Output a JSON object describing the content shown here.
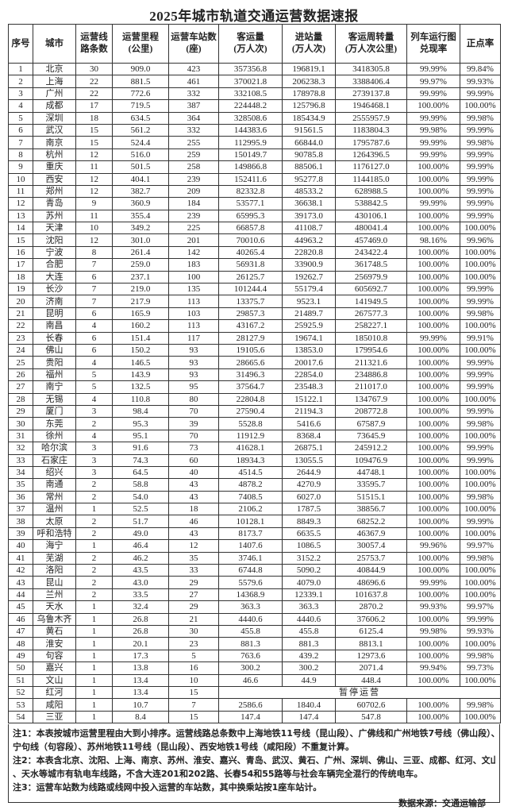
{
  "title": "2025年城市轨道交通运营数据速报",
  "headers": [
    [
      "序号"
    ],
    [
      "城市"
    ],
    [
      "运营线",
      "路条数"
    ],
    [
      "运营里程",
      "(公里)"
    ],
    [
      "运营车站数",
      "(座)"
    ],
    [
      "客运量",
      "(万人次)"
    ],
    [
      "进站量",
      "(万人次)"
    ],
    [
      "客运周转量",
      "(万人次公里)"
    ],
    [
      "列车运行图",
      "兑现率"
    ],
    [
      "正点率"
    ]
  ],
  "rows": [
    [
      "1",
      "北京",
      "30",
      "909.0",
      "423",
      "357356.8",
      "196819.1",
      "3418305.8",
      "99.99%",
      "99.84%"
    ],
    [
      "2",
      "上海",
      "22",
      "881.5",
      "461",
      "370021.8",
      "206238.3",
      "3388406.4",
      "99.97%",
      "99.93%"
    ],
    [
      "3",
      "广州",
      "22",
      "772.6",
      "332",
      "332108.5",
      "178978.8",
      "2739137.8",
      "99.99%",
      "99.99%"
    ],
    [
      "4",
      "成都",
      "17",
      "719.5",
      "387",
      "224448.2",
      "125796.8",
      "1946468.1",
      "100.00%",
      "100.00%"
    ],
    [
      "5",
      "深圳",
      "18",
      "634.5",
      "364",
      "328508.6",
      "185434.9",
      "2555957.9",
      "99.99%",
      "99.98%"
    ],
    [
      "6",
      "武汉",
      "15",
      "561.2",
      "332",
      "144383.6",
      "91561.5",
      "1183804.3",
      "99.98%",
      "99.99%"
    ],
    [
      "7",
      "南京",
      "15",
      "524.4",
      "255",
      "112995.9",
      "66844.0",
      "1795787.6",
      "99.99%",
      "99.98%"
    ],
    [
      "8",
      "杭州",
      "12",
      "516.0",
      "259",
      "150149.7",
      "90785.8",
      "1264396.5",
      "99.99%",
      "99.99%"
    ],
    [
      "9",
      "重庆",
      "11",
      "501.5",
      "258",
      "149866.8",
      "88506.1",
      "1176127.0",
      "100.00%",
      "99.99%"
    ],
    [
      "10",
      "西安",
      "12",
      "404.1",
      "239",
      "152411.6",
      "95277.8",
      "1144185.0",
      "100.00%",
      "99.99%"
    ],
    [
      "11",
      "郑州",
      "12",
      "382.7",
      "209",
      "82332.8",
      "48533.2",
      "628988.5",
      "100.00%",
      "99.99%"
    ],
    [
      "12",
      "青岛",
      "9",
      "360.9",
      "184",
      "53577.1",
      "36638.1",
      "538842.5",
      "99.99%",
      "99.99%"
    ],
    [
      "13",
      "苏州",
      "11",
      "355.4",
      "239",
      "65995.3",
      "39173.0",
      "430106.1",
      "100.00%",
      "99.99%"
    ],
    [
      "14",
      "天津",
      "10",
      "349.2",
      "225",
      "66857.8",
      "41108.7",
      "480041.4",
      "100.00%",
      "100.00%"
    ],
    [
      "15",
      "沈阳",
      "12",
      "301.0",
      "201",
      "70010.6",
      "44963.2",
      "457469.0",
      "98.16%",
      "99.96%"
    ],
    [
      "16",
      "宁波",
      "8",
      "261.4",
      "142",
      "40265.4",
      "22820.8",
      "243422.4",
      "100.00%",
      "100.00%"
    ],
    [
      "17",
      "合肥",
      "7",
      "259.0",
      "183",
      "56931.8",
      "33900.9",
      "361748.5",
      "100.00%",
      "100.00%"
    ],
    [
      "18",
      "大连",
      "6",
      "237.1",
      "100",
      "26125.7",
      "19262.7",
      "256979.9",
      "100.00%",
      "100.00%"
    ],
    [
      "19",
      "长沙",
      "7",
      "219.0",
      "135",
      "101244.4",
      "55179.4",
      "605692.7",
      "100.00%",
      "99.99%"
    ],
    [
      "20",
      "济南",
      "7",
      "217.9",
      "113",
      "13375.7",
      "9523.1",
      "141949.5",
      "100.00%",
      "99.99%"
    ],
    [
      "21",
      "昆明",
      "6",
      "165.9",
      "103",
      "29857.3",
      "21489.7",
      "267577.3",
      "100.00%",
      "99.98%"
    ],
    [
      "22",
      "南昌",
      "4",
      "160.2",
      "113",
      "43167.2",
      "25925.9",
      "258227.1",
      "100.00%",
      "100.00%"
    ],
    [
      "23",
      "长春",
      "6",
      "151.4",
      "117",
      "28127.9",
      "19674.1",
      "185010.8",
      "99.99%",
      "99.91%"
    ],
    [
      "24",
      "佛山",
      "6",
      "150.2",
      "93",
      "19105.6",
      "13853.0",
      "179954.6",
      "100.00%",
      "100.00%"
    ],
    [
      "25",
      "贵阳",
      "4",
      "146.5",
      "93",
      "28665.6",
      "20017.6",
      "211321.6",
      "100.00%",
      "99.99%"
    ],
    [
      "26",
      "福州",
      "5",
      "143.9",
      "93",
      "31496.3",
      "22854.0",
      "234886.8",
      "100.00%",
      "99.99%"
    ],
    [
      "27",
      "南宁",
      "5",
      "132.5",
      "95",
      "37564.7",
      "23548.3",
      "211017.0",
      "100.00%",
      "99.99%"
    ],
    [
      "28",
      "无锡",
      "4",
      "110.8",
      "80",
      "22804.8",
      "15122.1",
      "134767.9",
      "100.00%",
      "100.00%"
    ],
    [
      "29",
      "厦门",
      "3",
      "98.4",
      "70",
      "27590.4",
      "21194.3",
      "208772.8",
      "100.00%",
      "99.99%"
    ],
    [
      "30",
      "东莞",
      "2",
      "95.3",
      "39",
      "5528.8",
      "5416.6",
      "67587.9",
      "100.00%",
      "99.98%"
    ],
    [
      "31",
      "徐州",
      "4",
      "95.1",
      "70",
      "11912.9",
      "8368.4",
      "73645.9",
      "100.00%",
      "100.00%"
    ],
    [
      "32",
      "哈尔滨",
      "3",
      "91.6",
      "73",
      "41628.1",
      "26875.1",
      "245912.2",
      "100.00%",
      "99.99%"
    ],
    [
      "33",
      "石家庄",
      "3",
      "74.3",
      "60",
      "18934.3",
      "13055.5",
      "109476.9",
      "100.00%",
      "99.99%"
    ],
    [
      "34",
      "绍兴",
      "3",
      "64.5",
      "40",
      "4514.5",
      "2644.9",
      "44748.1",
      "100.00%",
      "100.00%"
    ],
    [
      "35",
      "南通",
      "2",
      "58.8",
      "43",
      "4878.2",
      "4270.9",
      "33595.7",
      "100.00%",
      "100.00%"
    ],
    [
      "36",
      "常州",
      "2",
      "54.0",
      "43",
      "7408.5",
      "6027.0",
      "51515.1",
      "100.00%",
      "99.98%"
    ],
    [
      "37",
      "温州",
      "1",
      "52.5",
      "18",
      "2106.2",
      "1787.5",
      "38856.7",
      "100.00%",
      "100.00%"
    ],
    [
      "38",
      "太原",
      "2",
      "51.7",
      "46",
      "10128.1",
      "8849.3",
      "68252.2",
      "100.00%",
      "99.99%"
    ],
    [
      "39",
      "呼和浩特",
      "2",
      "49.0",
      "43",
      "8173.7",
      "6635.5",
      "46367.9",
      "100.00%",
      "100.00%"
    ],
    [
      "40",
      "海宁",
      "1",
      "46.4",
      "12",
      "1407.6",
      "1086.5",
      "30057.4",
      "99.96%",
      "99.97%"
    ],
    [
      "41",
      "芜湖",
      "2",
      "46.2",
      "35",
      "3746.1",
      "3152.2",
      "25753.7",
      "100.00%",
      "99.98%"
    ],
    [
      "42",
      "洛阳",
      "2",
      "43.5",
      "33",
      "6744.8",
      "5090.2",
      "40844.9",
      "100.00%",
      "100.00%"
    ],
    [
      "43",
      "昆山",
      "2",
      "43.0",
      "29",
      "5579.6",
      "4079.0",
      "48696.6",
      "99.99%",
      "100.00%"
    ],
    [
      "44",
      "兰州",
      "2",
      "33.5",
      "27",
      "14368.9",
      "12339.1",
      "101637.8",
      "100.00%",
      "100.00%"
    ],
    [
      "45",
      "天水",
      "1",
      "32.4",
      "29",
      "363.3",
      "363.3",
      "2870.2",
      "99.93%",
      "99.97%"
    ],
    [
      "46",
      "乌鲁木齐",
      "1",
      "26.8",
      "21",
      "4440.6",
      "4440.6",
      "37606.2",
      "100.00%",
      "99.99%"
    ],
    [
      "47",
      "黄石",
      "1",
      "26.8",
      "30",
      "455.8",
      "455.8",
      "6125.4",
      "99.98%",
      "99.93%"
    ],
    [
      "48",
      "淮安",
      "1",
      "20.1",
      "23",
      "881.3",
      "881.3",
      "8813.1",
      "100.00%",
      "100.00%"
    ],
    [
      "49",
      "句容",
      "1",
      "17.3",
      "5",
      "763.6",
      "439.2",
      "12973.6",
      "100.00%",
      "99.98%"
    ],
    [
      "50",
      "嘉兴",
      "1",
      "13.8",
      "16",
      "300.2",
      "300.2",
      "2071.4",
      "99.94%",
      "99.73%"
    ],
    [
      "51",
      "文山",
      "1",
      "13.4",
      "10",
      "46.6",
      "44.9",
      "448.4",
      "100.00%",
      "100.00%"
    ],
    [
      "52",
      "红河",
      "1",
      "13.4",
      "15",
      "暂停运营"
    ],
    [
      "53",
      "咸阳",
      "1",
      "10.7",
      "7",
      "2586.6",
      "1840.4",
      "60702.6",
      "100.00%",
      "99.98%"
    ],
    [
      "54",
      "三亚",
      "1",
      "8.4",
      "15",
      "147.4",
      "147.4",
      "547.8",
      "100.00%",
      "100.00%"
    ]
  ],
  "notes": {
    "note1_line1": "注1：本表按城市运营里程由大到小排序。运营线路总条数中上海地铁11号线（昆山段）、广佛线和广州地铁7号线（佛山段）、",
    "note1_line2": "宁句线（句容段）、苏州地铁11号线（昆山段）、西安地铁1号线（咸阳段）不重复计算。",
    "note2_line1": "注2：本表含北京、沈阳、上海、南京、苏州、淮安、嘉兴、青岛、武汉、黄石、广州、深圳、佛山、三亚、成都、红河、文山",
    "note2_line2": "、天水等城市有轨电车线路，不含大连201和202路、长春54和55路等与社会车辆完全混行的传统电车。",
    "note3": "注3：运营车站数为线路或线网中投入运营的车站数，其中换乘站按1座车站计。",
    "source": "数据来源：交通运输部"
  }
}
